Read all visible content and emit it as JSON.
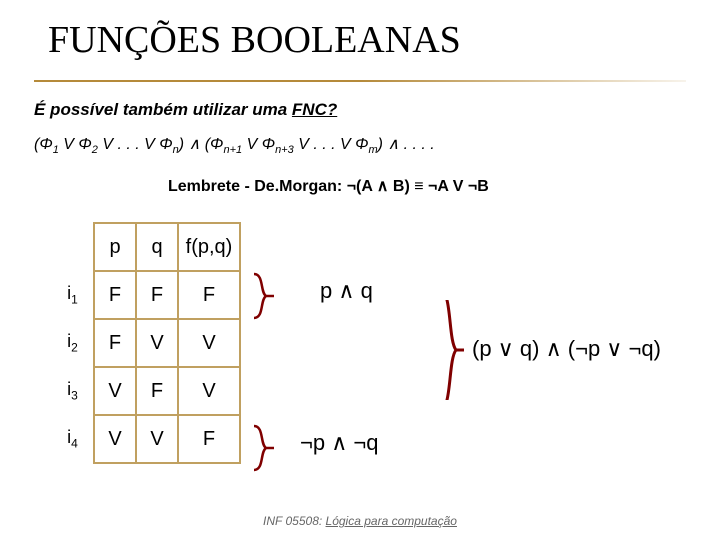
{
  "title": "FUNÇÕES BOOLEANAS",
  "subtitle_pre": "É possível também utilizar uma ",
  "subtitle_fnc": "FNC?",
  "formula_html": "(Φ<sub>1</sub> V Φ<sub>2</sub> V . . . V Φ<sub>n</sub>) ∧ (Φ<sub>n+1</sub> V Φ<sub>n+3</sub> V . . . V Φ<sub>m</sub>) ∧ . . . .",
  "lembrete": "Lembrete - De.Morgan: ¬(A ∧ B) ≡ ¬A V ¬B",
  "table": {
    "headers": [
      "p",
      "q",
      "f(p,q)"
    ],
    "rows": [
      {
        "label_html": "i<sub>1</sub>",
        "cells": [
          "F",
          "F",
          "F"
        ]
      },
      {
        "label_html": "i<sub>2</sub>",
        "cells": [
          "F",
          "V",
          "V"
        ]
      },
      {
        "label_html": "i<sub>3</sub>",
        "cells": [
          "V",
          "F",
          "V"
        ]
      },
      {
        "label_html": "i<sub>4</sub>",
        "cells": [
          "V",
          "V",
          "F"
        ]
      }
    ]
  },
  "expr1": "p ∧ q",
  "expr2": "(p ∨ q) ∧ (¬p ∨ ¬q)",
  "expr3": "¬p ∧ ¬q",
  "footer_code": "INF 05508: ",
  "footer_course": "Lógica para computação",
  "colors": {
    "brace": "#800000",
    "table_border": "#c0a060"
  }
}
